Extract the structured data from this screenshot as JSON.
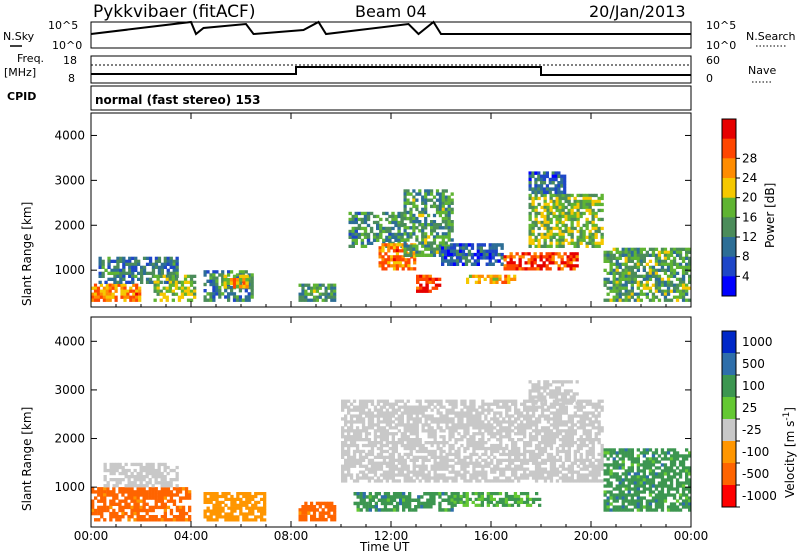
{
  "header": {
    "station": "Pykkvibaer (fitACF)",
    "beam": "Beam 04",
    "date": "20/Jan/2013"
  },
  "panels": {
    "nsky": {
      "left_label": "N.Sky",
      "left_ticks": [
        "10^5",
        "10^0"
      ],
      "right_label": "N.Search",
      "right_ticks": [
        "10^5",
        "10^0"
      ]
    },
    "freq": {
      "left_label_1": "Freq.",
      "left_label_2": "[MHz]",
      "left_ticks": [
        "18",
        "8"
      ],
      "right_label": "Nave",
      "right_ticks": [
        "60",
        "0"
      ]
    },
    "cpid": {
      "label": "CPID",
      "text": "normal (fast stereo) 153"
    }
  },
  "colors": {
    "frame": "#000000",
    "background": "#ffffff",
    "scatter_gray": "#c8c8c8"
  },
  "chart_data": [
    {
      "type": "heatmap",
      "title": "",
      "xlabel": "Time UT",
      "ylabel": "Slant Range [km]",
      "xlim": [
        0,
        24
      ],
      "ylim": [
        180,
        4500
      ],
      "x_ticks": [
        "00:00",
        "04:00",
        "08:00",
        "12:00",
        "16:00",
        "20:00",
        "00:00"
      ],
      "y_ticks": [
        "1000",
        "2000",
        "3000",
        "4000"
      ],
      "colorbar": {
        "label": "Power [dB]",
        "ticks": [
          "4",
          "8",
          "12",
          "16",
          "20",
          "24",
          "28"
        ],
        "range": [
          0,
          30
        ],
        "colors": [
          "#0000ff",
          "#1e46c8",
          "#2d6e96",
          "#4b8c5a",
          "#5fb432",
          "#f5c800",
          "#ff8c00",
          "#ff4600",
          "#e60000"
        ]
      },
      "regions": [
        {
          "t": [
            0.0,
            2.0
          ],
          "r": [
            300,
            700
          ],
          "v": 22
        },
        {
          "t": [
            0.3,
            3.5
          ],
          "r": [
            700,
            1300
          ],
          "v": 9
        },
        {
          "t": [
            2.5,
            4.2
          ],
          "r": [
            300,
            900
          ],
          "v": 15
        },
        {
          "t": [
            4.5,
            6.5
          ],
          "r": [
            300,
            1000
          ],
          "v": 10
        },
        {
          "t": [
            5.3,
            6.3
          ],
          "r": [
            600,
            900
          ],
          "v": 20
        },
        {
          "t": [
            8.3,
            9.8
          ],
          "r": [
            300,
            700
          ],
          "v": 12
        },
        {
          "t": [
            10.3,
            12.5
          ],
          "r": [
            1500,
            2300
          ],
          "v": 11
        },
        {
          "t": [
            11.5,
            13.0
          ],
          "r": [
            1000,
            1600
          ],
          "v": 22
        },
        {
          "t": [
            12.5,
            14.5
          ],
          "r": [
            1300,
            2800
          ],
          "v": 12
        },
        {
          "t": [
            13.0,
            14.0
          ],
          "r": [
            500,
            900
          ],
          "v": 27
        },
        {
          "t": [
            14.0,
            16.5
          ],
          "r": [
            1100,
            1600
          ],
          "v": 7
        },
        {
          "t": [
            15.0,
            17.0
          ],
          "r": [
            700,
            900
          ],
          "v": 21
        },
        {
          "t": [
            16.5,
            19.5
          ],
          "r": [
            1000,
            1400
          ],
          "v": 26
        },
        {
          "t": [
            17.5,
            20.5
          ],
          "r": [
            1500,
            2700
          ],
          "v": 15
        },
        {
          "t": [
            17.5,
            19.0
          ],
          "r": [
            2700,
            3200
          ],
          "v": 8
        },
        {
          "t": [
            20.5,
            24.0
          ],
          "r": [
            300,
            1500
          ],
          "v": 13
        }
      ]
    },
    {
      "type": "heatmap",
      "title": "",
      "xlabel": "Time UT",
      "ylabel": "Slant Range [km]",
      "xlim": [
        0,
        24
      ],
      "ylim": [
        180,
        4500
      ],
      "x_ticks": [
        "00:00",
        "04:00",
        "08:00",
        "12:00",
        "16:00",
        "20:00",
        "00:00"
      ],
      "y_ticks": [
        "1000",
        "2000",
        "3000",
        "4000"
      ],
      "colorbar": {
        "label": "Velocity [m s^-1]",
        "ticks": [
          "1000",
          "500",
          "100",
          "25",
          "-25",
          "-100",
          "-500",
          "-1000"
        ],
        "colors": [
          "#0028c8",
          "#2e6eaa",
          "#3c9650",
          "#64c832",
          "#c8c8c8",
          "#ff9600",
          "#ff6400",
          "#ff0000"
        ]
      },
      "regions": [
        {
          "t": [
            0.0,
            4.0
          ],
          "r": [
            300,
            1000
          ],
          "v": -150
        },
        {
          "t": [
            0.5,
            3.5
          ],
          "r": [
            1000,
            1500
          ],
          "v": 0
        },
        {
          "t": [
            4.5,
            7.0
          ],
          "r": [
            300,
            900
          ],
          "v": -60
        },
        {
          "t": [
            8.3,
            9.8
          ],
          "r": [
            300,
            700
          ],
          "v": -150
        },
        {
          "t": [
            10.0,
            20.5
          ],
          "r": [
            1100,
            2800
          ],
          "v": 0
        },
        {
          "t": [
            10.5,
            14.5
          ],
          "r": [
            500,
            900
          ],
          "v": 150
        },
        {
          "t": [
            14.5,
            18.0
          ],
          "r": [
            600,
            900
          ],
          "v": 120
        },
        {
          "t": [
            17.5,
            19.5
          ],
          "r": [
            2700,
            3200
          ],
          "v": 0
        },
        {
          "t": [
            20.5,
            24.0
          ],
          "r": [
            500,
            1800
          ],
          "v": 150
        }
      ]
    }
  ]
}
